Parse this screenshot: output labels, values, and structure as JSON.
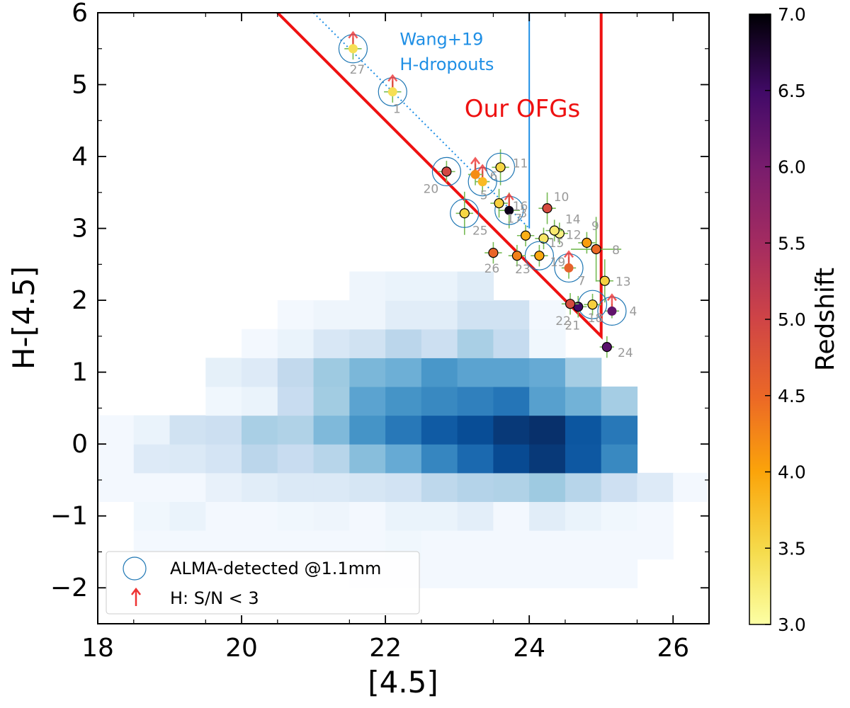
{
  "chart_data": {
    "type": "scatter",
    "xlabel": "[4.5]",
    "ylabel": "H-[4.5]",
    "xlim": [
      18,
      26.5
    ],
    "ylim": [
      -2.5,
      6
    ],
    "xticks": [
      18,
      20,
      22,
      24,
      26
    ],
    "xtick_labels": [
      "18",
      "20",
      "22",
      "24",
      "26"
    ],
    "yticks": [
      -2,
      -1,
      0,
      1,
      2,
      3,
      4,
      5,
      6
    ],
    "ytick_labels": [
      "−2",
      "−1",
      "0",
      "1",
      "2",
      "3",
      "4",
      "5",
      "6"
    ],
    "grid": false,
    "colorbar": {
      "label": "Redshift",
      "range": [
        3.0,
        7.0
      ],
      "colormap": "inferno_r",
      "ticks": [
        3.0,
        3.5,
        4.0,
        4.5,
        5.0,
        5.5,
        6.0,
        6.5,
        7.0
      ],
      "tick_labels": [
        "3.0",
        "3.5",
        "4.0",
        "4.5",
        "5.0",
        "5.5",
        "6.0",
        "6.5",
        "7.0"
      ]
    },
    "density_histogram": {
      "name": "background galaxy distribution",
      "x_edges": [
        18.0,
        18.5,
        19.0,
        19.5,
        20.0,
        20.5,
        21.0,
        21.5,
        22.0,
        22.5,
        23.0,
        23.5,
        24.0,
        24.5,
        25.0,
        25.5,
        26.0,
        26.5
      ],
      "y_edges": [
        -2.0,
        -1.6,
        -1.2,
        -0.8,
        -0.4,
        0.0,
        0.4,
        0.8,
        1.2,
        1.6,
        2.0,
        2.4,
        2.8,
        3.2,
        3.6,
        4.0,
        4.4
      ],
      "counts": [
        [
          0,
          0,
          0,
          0,
          0,
          0,
          0,
          2,
          2,
          2,
          2,
          2,
          2,
          2,
          2,
          0,
          0
        ],
        [
          0,
          2,
          2,
          2,
          2,
          2,
          2,
          2,
          3,
          2,
          2,
          2,
          2,
          2,
          2,
          2,
          0
        ],
        [
          0,
          3,
          6,
          2,
          2,
          3,
          4,
          2,
          6,
          6,
          9,
          2,
          10,
          6,
          3,
          2,
          0
        ],
        [
          2,
          2,
          2,
          7,
          10,
          13,
          13,
          15,
          17,
          25,
          28,
          29,
          34,
          27,
          19,
          12,
          2
        ],
        [
          2,
          12,
          13,
          16,
          26,
          22,
          27,
          39,
          47,
          61,
          71,
          82,
          88,
          77,
          60,
          0,
          0
        ],
        [
          2,
          6,
          18,
          20,
          31,
          29,
          41,
          56,
          66,
          76,
          81,
          88,
          91,
          78,
          66,
          0,
          0
        ],
        [
          0,
          0,
          0,
          3,
          6,
          22,
          33,
          50,
          56,
          60,
          63,
          67,
          51,
          44,
          32,
          0,
          0
        ],
        [
          0,
          0,
          0,
          8,
          12,
          24,
          34,
          42,
          45,
          55,
          50,
          50,
          47,
          32,
          0,
          0,
          0
        ],
        [
          0,
          0,
          0,
          0,
          2,
          6,
          14,
          18,
          26,
          20,
          31,
          23,
          3,
          0,
          0,
          0,
          0
        ],
        [
          0,
          0,
          0,
          0,
          0,
          2,
          4,
          4,
          10,
          10,
          18,
          18,
          2,
          0,
          0,
          0,
          0
        ],
        [
          0,
          0,
          0,
          0,
          0,
          0,
          0,
          4,
          6,
          6,
          11,
          0,
          0,
          0,
          0,
          0,
          0
        ],
        [
          0,
          0,
          0,
          0,
          0,
          0,
          0,
          0,
          0,
          0,
          0,
          0,
          0,
          0,
          0,
          0,
          0
        ],
        [
          0,
          0,
          0,
          0,
          0,
          0,
          0,
          0,
          0,
          0,
          0,
          0,
          0,
          0,
          0,
          0,
          0
        ],
        [
          0,
          0,
          0,
          0,
          0,
          0,
          0,
          0,
          0,
          0,
          0,
          0,
          0,
          0,
          0,
          0,
          0
        ],
        [
          0,
          0,
          0,
          0,
          0,
          0,
          0,
          0,
          0,
          0,
          0,
          0,
          0,
          0,
          0,
          0,
          0
        ],
        [
          0,
          0,
          0,
          0,
          0,
          0,
          0,
          0,
          0,
          0,
          0,
          0,
          0,
          0,
          0,
          0,
          0
        ],
        [
          0,
          0,
          0,
          0,
          0,
          0,
          0,
          0,
          0,
          0,
          0,
          0,
          0,
          0,
          0,
          0,
          0
        ]
      ]
    },
    "selection_lines": [
      {
        "name": "Our OFGs",
        "color": "#ee1111",
        "style": "solid",
        "points": [
          [
            20.5,
            6.0
          ],
          [
            25.0,
            1.5
          ],
          [
            25.0,
            6.0
          ]
        ]
      },
      {
        "name": "Wang+19 H-dropouts",
        "color": "#1f8fe5",
        "style": "dotted",
        "points": [
          [
            21.0,
            6.0
          ],
          [
            24.0,
            3.0
          ]
        ]
      },
      {
        "name": "Wang+19 H-dropouts limit",
        "color": "#1f8fe5",
        "style": "solid",
        "points": [
          [
            24.0,
            3.0
          ],
          [
            24.0,
            6.0
          ]
        ]
      }
    ],
    "annotations": [
      {
        "text": "Wang+19",
        "color": "#1f8fe5",
        "x": 22.2,
        "y": 5.55
      },
      {
        "text": "H-dropouts",
        "color": "#1f8fe5",
        "x": 22.2,
        "y": 5.2
      },
      {
        "text": "Our OFGs",
        "color": "#ee1111",
        "x": 23.1,
        "y": 4.55
      }
    ],
    "legend": {
      "placement": "lower-left",
      "entries": [
        {
          "label": "ALMA-detected @1.1mm",
          "marker": "open-circle"
        },
        {
          "label": "H: S/N < 3",
          "marker": "red-up-arrow"
        }
      ]
    },
    "series": [
      {
        "name": "OFGs",
        "points": [
          {
            "id": "1",
            "x": 22.1,
            "y": 4.9,
            "z": 3.45,
            "alma": true,
            "h_limit": true,
            "xerr": 0.12,
            "yerr": 0.15
          },
          {
            "id": "3",
            "x": 23.72,
            "y": 3.25,
            "z": 6.9,
            "alma": true,
            "h_limit": true,
            "xerr": 0.15,
            "yerr": 0.25
          },
          {
            "id": "4",
            "x": 25.15,
            "y": 1.85,
            "z": 6.2,
            "alma": true,
            "h_limit": true,
            "xerr": 0.1,
            "yerr": 0.1
          },
          {
            "id": "5",
            "x": 23.35,
            "y": 3.65,
            "z": 3.8,
            "alma": true,
            "h_limit": true,
            "xerr": 0.1,
            "yerr": 0.15
          },
          {
            "id": "6",
            "x": 23.25,
            "y": 3.75,
            "z": 4.2,
            "alma": false,
            "h_limit": true,
            "xerr": 0.1,
            "yerr": 0.15
          },
          {
            "id": "7",
            "x": 24.55,
            "y": 2.45,
            "z": 4.6,
            "alma": true,
            "h_limit": true,
            "xerr": 0.1,
            "yerr": 0.15
          },
          {
            "id": "8",
            "x": 24.93,
            "y": 2.71,
            "z": 4.5,
            "alma": false,
            "h_limit": false,
            "xerr": 0.35,
            "yerr": 0.45
          },
          {
            "id": "9",
            "x": 24.8,
            "y": 2.8,
            "z": 4.05,
            "alma": false,
            "h_limit": false,
            "xerr": 0.12,
            "yerr": 0.15
          },
          {
            "id": "10",
            "x": 24.25,
            "y": 3.28,
            "z": 4.9,
            "alma": false,
            "h_limit": false,
            "xerr": 0.12,
            "yerr": 0.22
          },
          {
            "id": "11",
            "x": 23.6,
            "y": 3.85,
            "z": 3.55,
            "alma": true,
            "h_limit": false,
            "xerr": 0.12,
            "yerr": 0.25
          },
          {
            "id": "12",
            "x": 24.42,
            "y": 2.93,
            "z": 3.2,
            "alma": false,
            "h_limit": false,
            "xerr": 0.12,
            "yerr": 0.15
          },
          {
            "id": "13",
            "x": 25.05,
            "y": 2.27,
            "z": 3.6,
            "alma": false,
            "h_limit": false,
            "xerr": 0.12,
            "yerr": 0.3
          },
          {
            "id": "14",
            "x": 24.35,
            "y": 2.97,
            "z": 3.3,
            "alma": false,
            "h_limit": false,
            "xerr": 0.12,
            "yerr": 0.15
          },
          {
            "id": "15",
            "x": 24.2,
            "y": 2.86,
            "z": 3.35,
            "alma": false,
            "h_limit": false,
            "xerr": 0.12,
            "yerr": 0.15
          },
          {
            "id": "16",
            "x": 23.58,
            "y": 3.35,
            "z": 3.6,
            "alma": false,
            "h_limit": false,
            "xerr": 0.12,
            "yerr": 0.2
          },
          {
            "id": "17",
            "x": 23.95,
            "y": 2.9,
            "z": 3.9,
            "alma": false,
            "h_limit": false,
            "xerr": 0.12,
            "yerr": 0.15
          },
          {
            "id": "18",
            "x": 24.88,
            "y": 1.94,
            "z": 3.6,
            "alma": true,
            "h_limit": false,
            "xerr": 0.12,
            "yerr": 0.15
          },
          {
            "id": "19",
            "x": 24.14,
            "y": 2.62,
            "z": 3.95,
            "alma": true,
            "h_limit": false,
            "xerr": 0.12,
            "yerr": 0.15
          },
          {
            "id": "20",
            "x": 22.85,
            "y": 3.79,
            "z": 4.95,
            "alma": true,
            "h_limit": false,
            "xerr": 0.12,
            "yerr": 0.15
          },
          {
            "id": "21",
            "x": 24.68,
            "y": 1.91,
            "z": 6.5,
            "alma": false,
            "h_limit": false,
            "xerr": 0.12,
            "yerr": 0.15
          },
          {
            "id": "22",
            "x": 24.57,
            "y": 1.95,
            "z": 4.9,
            "alma": false,
            "h_limit": false,
            "xerr": 0.12,
            "yerr": 0.15
          },
          {
            "id": "23",
            "x": 23.83,
            "y": 2.62,
            "z": 4.3,
            "alma": false,
            "h_limit": false,
            "xerr": 0.12,
            "yerr": 0.15
          },
          {
            "id": "24",
            "x": 25.08,
            "y": 1.35,
            "z": 6.3,
            "alma": false,
            "h_limit": false,
            "xerr": 0.1,
            "yerr": 0.15
          },
          {
            "id": "25",
            "x": 23.1,
            "y": 3.21,
            "z": 3.55,
            "alma": true,
            "h_limit": false,
            "xerr": 0.12,
            "yerr": 0.3
          },
          {
            "id": "26",
            "x": 23.5,
            "y": 2.66,
            "z": 4.55,
            "alma": false,
            "h_limit": false,
            "xerr": 0.12,
            "yerr": 0.15
          },
          {
            "id": "27",
            "x": 21.55,
            "y": 5.5,
            "z": 3.45,
            "alma": true,
            "h_limit": true,
            "xerr": 0.12,
            "yerr": 0.15
          }
        ]
      }
    ]
  }
}
